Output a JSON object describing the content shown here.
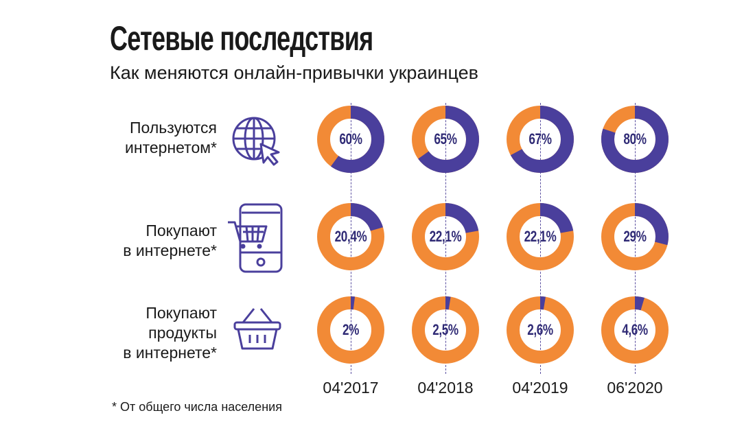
{
  "title": "Сетевые последствия",
  "subtitle": "Как меняются онлайн-привычки украинцев",
  "footnote": "* От общего числа населения",
  "colors": {
    "share": "#4a3f9c",
    "rest": "#f28a36",
    "label": "#2f2a75"
  },
  "chart_data": {
    "type": "donut-grid",
    "periods": [
      "04'2017",
      "04'2018",
      "04'2019",
      "06'2020"
    ],
    "series": [
      {
        "name": "Пользуются интернетом*",
        "icon": "globe-cursor-icon",
        "values": [
          60,
          65,
          67,
          80
        ],
        "labels": [
          "60%",
          "65%",
          "67%",
          "80%"
        ]
      },
      {
        "name": "Покупают в интернете*",
        "icon": "phone-cart-icon",
        "values": [
          20.4,
          22.1,
          22.1,
          29
        ],
        "labels": [
          "20,4%",
          "22,1%",
          "22,1%",
          "29%"
        ]
      },
      {
        "name": "Покупают продукты в интернете*",
        "icon": "grocery-basket-icon",
        "values": [
          2,
          2.5,
          2.6,
          4.6
        ],
        "labels": [
          "2%",
          "2,5%",
          "2,6%",
          "4,6%"
        ]
      }
    ],
    "unit": "%"
  },
  "rows": [
    {
      "line1": "Пользуются",
      "line2": "интернетом*"
    },
    {
      "line1": "Покупают",
      "line2": "в интернете*"
    },
    {
      "line1": "Покупают",
      "line2": "продукты",
      "line3": "в интернете*"
    }
  ]
}
